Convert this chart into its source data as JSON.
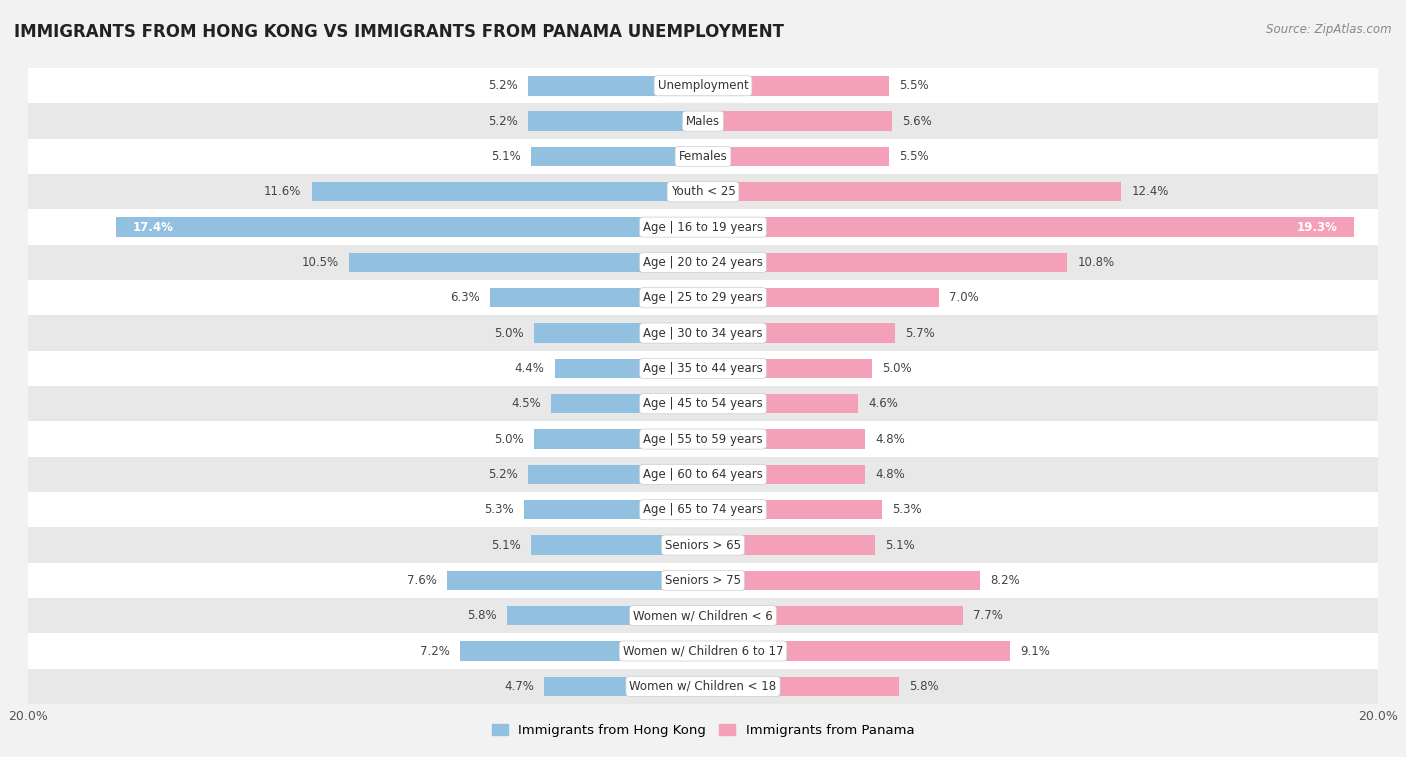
{
  "title": "IMMIGRANTS FROM HONG KONG VS IMMIGRANTS FROM PANAMA UNEMPLOYMENT",
  "source": "Source: ZipAtlas.com",
  "categories": [
    "Unemployment",
    "Males",
    "Females",
    "Youth < 25",
    "Age | 16 to 19 years",
    "Age | 20 to 24 years",
    "Age | 25 to 29 years",
    "Age | 30 to 34 years",
    "Age | 35 to 44 years",
    "Age | 45 to 54 years",
    "Age | 55 to 59 years",
    "Age | 60 to 64 years",
    "Age | 65 to 74 years",
    "Seniors > 65",
    "Seniors > 75",
    "Women w/ Children < 6",
    "Women w/ Children 6 to 17",
    "Women w/ Children < 18"
  ],
  "hong_kong": [
    5.2,
    5.2,
    5.1,
    11.6,
    17.4,
    10.5,
    6.3,
    5.0,
    4.4,
    4.5,
    5.0,
    5.2,
    5.3,
    5.1,
    7.6,
    5.8,
    7.2,
    4.7
  ],
  "panama": [
    5.5,
    5.6,
    5.5,
    12.4,
    19.3,
    10.8,
    7.0,
    5.7,
    5.0,
    4.6,
    4.8,
    4.8,
    5.3,
    5.1,
    8.2,
    7.7,
    9.1,
    5.8
  ],
  "hk_color": "#92c0e0",
  "panama_color": "#f4a0b8",
  "bg_color": "#f2f2f2",
  "row_color_light": "#ffffff",
  "row_color_dark": "#e8e8e8",
  "max_val": 20.0,
  "bar_height": 0.55,
  "title_fontsize": 12,
  "label_fontsize": 8.5,
  "value_fontsize": 8.5,
  "legend_label_hk": "Immigrants from Hong Kong",
  "legend_label_panama": "Immigrants from Panama",
  "axis_label_left": "20.0%",
  "axis_label_right": "20.0%"
}
